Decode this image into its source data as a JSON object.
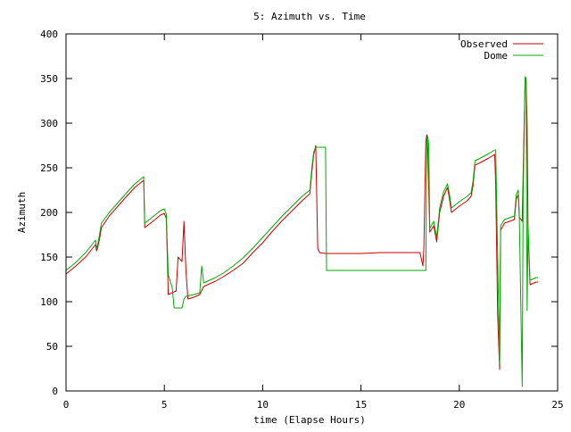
{
  "chart_data": {
    "type": "line",
    "title": "5: Azimuth vs. Time",
    "xlabel": "time (Elapse Hours)",
    "ylabel": "Azimuth",
    "xlim": [
      0,
      25
    ],
    "ylim": [
      0,
      400
    ],
    "xticks": [
      0,
      5,
      10,
      15,
      20,
      25
    ],
    "yticks": [
      0,
      50,
      100,
      150,
      200,
      250,
      300,
      350,
      400
    ],
    "grid": false,
    "legend_position": "top-right",
    "series": [
      {
        "name": "Observed",
        "color": "#cc0000",
        "points": [
          [
            0.0,
            131
          ],
          [
            0.5,
            140
          ],
          [
            1.0,
            150
          ],
          [
            1.5,
            164
          ],
          [
            1.55,
            157
          ],
          [
            1.6,
            160
          ],
          [
            1.7,
            170
          ],
          [
            1.8,
            183
          ],
          [
            2.2,
            196
          ],
          [
            2.6,
            206
          ],
          [
            3.0,
            216
          ],
          [
            3.5,
            228
          ],
          [
            3.95,
            236
          ],
          [
            4.0,
            183
          ],
          [
            4.3,
            188
          ],
          [
            4.8,
            197
          ],
          [
            5.0,
            199
          ],
          [
            5.1,
            193
          ],
          [
            5.2,
            108
          ],
          [
            5.4,
            110
          ],
          [
            5.6,
            112
          ],
          [
            5.7,
            150
          ],
          [
            5.9,
            145
          ],
          [
            6.0,
            190
          ],
          [
            6.1,
            135
          ],
          [
            6.2,
            103
          ],
          [
            6.5,
            105
          ],
          [
            6.8,
            108
          ],
          [
            7.0,
            117
          ],
          [
            7.3,
            120
          ],
          [
            7.6,
            123
          ],
          [
            8.0,
            128
          ],
          [
            8.5,
            135
          ],
          [
            9.0,
            143
          ],
          [
            9.5,
            155
          ],
          [
            10.0,
            166
          ],
          [
            10.5,
            179
          ],
          [
            11.0,
            191
          ],
          [
            11.5,
            202
          ],
          [
            12.0,
            213
          ],
          [
            12.4,
            221
          ],
          [
            12.5,
            245
          ],
          [
            12.6,
            265
          ],
          [
            12.7,
            275
          ],
          [
            12.8,
            160
          ],
          [
            12.9,
            155
          ],
          [
            13.2,
            154
          ],
          [
            14.0,
            154
          ],
          [
            15.0,
            154
          ],
          [
            16.0,
            155
          ],
          [
            17.0,
            155
          ],
          [
            18.0,
            155
          ],
          [
            18.15,
            140
          ],
          [
            18.2,
            160
          ],
          [
            18.3,
            280
          ],
          [
            18.35,
            287
          ],
          [
            18.4,
            270
          ],
          [
            18.5,
            178
          ],
          [
            18.7,
            185
          ],
          [
            18.85,
            167
          ],
          [
            19.0,
            200
          ],
          [
            19.2,
            218
          ],
          [
            19.4,
            228
          ],
          [
            19.5,
            215
          ],
          [
            19.6,
            200
          ],
          [
            20.0,
            207
          ],
          [
            20.4,
            213
          ],
          [
            20.6,
            218
          ],
          [
            20.7,
            230
          ],
          [
            20.8,
            253
          ],
          [
            21.0,
            255
          ],
          [
            21.5,
            261
          ],
          [
            21.8,
            265
          ],
          [
            21.85,
            230
          ],
          [
            21.95,
            85
          ],
          [
            22.05,
            24
          ],
          [
            22.1,
            180
          ],
          [
            22.3,
            188
          ],
          [
            22.8,
            192
          ],
          [
            22.9,
            215
          ],
          [
            23.0,
            220
          ],
          [
            23.05,
            195
          ],
          [
            23.2,
            190
          ],
          [
            23.3,
            300
          ],
          [
            23.35,
            350
          ],
          [
            23.4,
            347
          ],
          [
            23.45,
            300
          ],
          [
            23.5,
            178
          ],
          [
            23.6,
            119
          ],
          [
            23.9,
            122
          ],
          [
            24.0,
            122
          ]
        ]
      },
      {
        "name": "Dome",
        "color": "#00aa00",
        "points": [
          [
            0.0,
            135
          ],
          [
            0.5,
            144
          ],
          [
            1.0,
            155
          ],
          [
            1.5,
            169
          ],
          [
            1.55,
            160
          ],
          [
            1.6,
            163
          ],
          [
            1.7,
            175
          ],
          [
            1.8,
            188
          ],
          [
            2.2,
            200
          ],
          [
            2.6,
            210
          ],
          [
            3.0,
            220
          ],
          [
            3.5,
            232
          ],
          [
            3.95,
            240
          ],
          [
            4.0,
            188
          ],
          [
            4.3,
            193
          ],
          [
            4.8,
            202
          ],
          [
            5.0,
            204
          ],
          [
            5.1,
            198
          ],
          [
            5.2,
            130
          ],
          [
            5.4,
            116
          ],
          [
            5.5,
            93
          ],
          [
            5.9,
            93
          ],
          [
            6.0,
            103
          ],
          [
            6.1,
            106
          ],
          [
            6.5,
            108
          ],
          [
            6.8,
            110
          ],
          [
            6.9,
            140
          ],
          [
            7.0,
            121
          ],
          [
            7.3,
            124
          ],
          [
            7.6,
            127
          ],
          [
            8.0,
            132
          ],
          [
            8.5,
            140
          ],
          [
            9.0,
            149
          ],
          [
            9.5,
            160
          ],
          [
            10.0,
            172
          ],
          [
            10.5,
            184
          ],
          [
            11.0,
            196
          ],
          [
            11.5,
            207
          ],
          [
            12.0,
            218
          ],
          [
            12.4,
            225
          ],
          [
            12.5,
            250
          ],
          [
            12.6,
            268
          ],
          [
            12.7,
            273
          ],
          [
            13.2,
            273
          ],
          [
            13.25,
            135
          ],
          [
            14.0,
            135
          ],
          [
            15.0,
            135
          ],
          [
            16.0,
            135
          ],
          [
            17.0,
            135
          ],
          [
            18.0,
            135
          ],
          [
            18.3,
            135
          ],
          [
            18.35,
            283
          ],
          [
            18.4,
            285
          ],
          [
            18.45,
            275
          ],
          [
            18.5,
            182
          ],
          [
            18.7,
            190
          ],
          [
            18.85,
            172
          ],
          [
            19.0,
            205
          ],
          [
            19.2,
            223
          ],
          [
            19.4,
            232
          ],
          [
            19.5,
            220
          ],
          [
            19.6,
            205
          ],
          [
            20.0,
            212
          ],
          [
            20.4,
            218
          ],
          [
            20.6,
            222
          ],
          [
            20.7,
            235
          ],
          [
            20.8,
            258
          ],
          [
            21.0,
            260
          ],
          [
            21.5,
            266
          ],
          [
            21.8,
            270
          ],
          [
            21.85,
            270
          ],
          [
            21.95,
            150
          ],
          [
            22.05,
            30
          ],
          [
            22.1,
            185
          ],
          [
            22.3,
            192
          ],
          [
            22.8,
            196
          ],
          [
            22.9,
            220
          ],
          [
            23.0,
            225
          ],
          [
            23.05,
            200
          ],
          [
            23.2,
            5
          ],
          [
            23.25,
            220
          ],
          [
            23.35,
            352
          ],
          [
            23.4,
            350
          ],
          [
            23.45,
            90
          ],
          [
            23.5,
            185
          ],
          [
            23.6,
            124
          ],
          [
            23.9,
            127
          ],
          [
            24.0,
            127
          ]
        ]
      }
    ]
  }
}
